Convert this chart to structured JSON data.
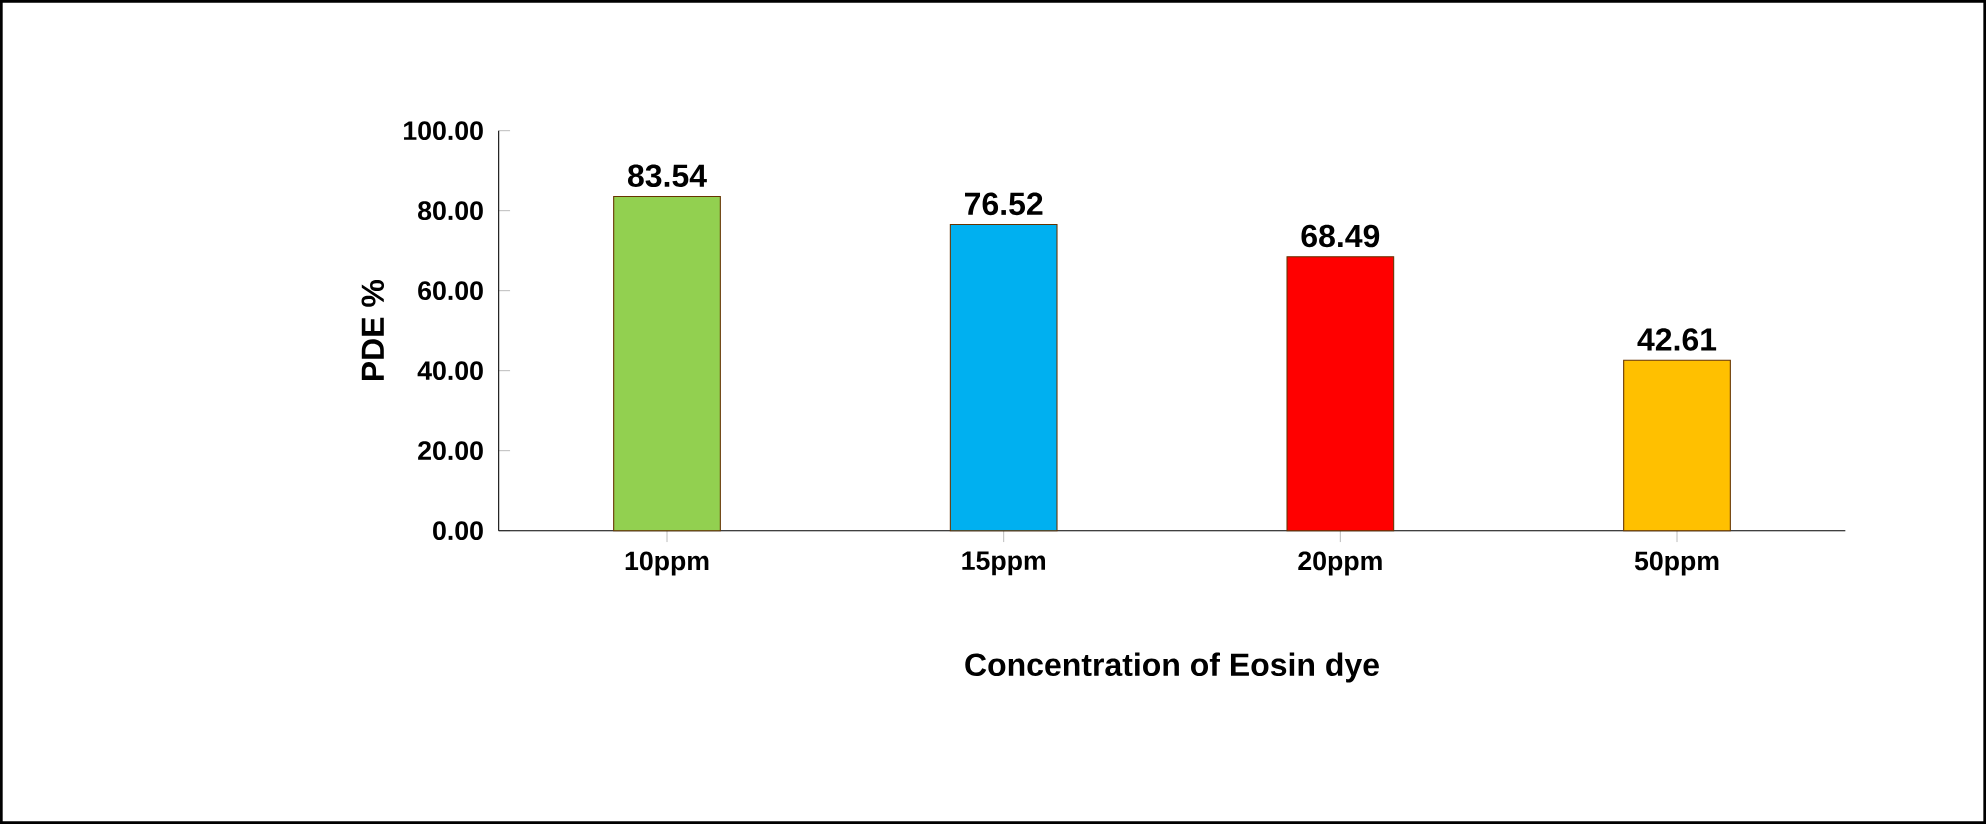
{
  "chart_data": {
    "type": "bar",
    "xlabel": "Concentration of Eosin dye",
    "ylabel": "PDE %",
    "categories": [
      "10ppm",
      "15ppm",
      "20ppm",
      "50ppm"
    ],
    "values": [
      83.54,
      76.52,
      68.49,
      42.61
    ],
    "colors": [
      "#92d050",
      "#00b0f0",
      "#ff0000",
      "#ffc000"
    ],
    "ylim": [
      0,
      100
    ],
    "yticks": [
      {
        "value": 0,
        "label": "0.00"
      },
      {
        "value": 20,
        "label": "20.00"
      },
      {
        "value": 40,
        "label": "40.00"
      },
      {
        "value": 60,
        "label": "60.00"
      },
      {
        "value": 80,
        "label": "80.00"
      },
      {
        "value": 100,
        "label": "100.00"
      }
    ],
    "data_labels": true
  }
}
